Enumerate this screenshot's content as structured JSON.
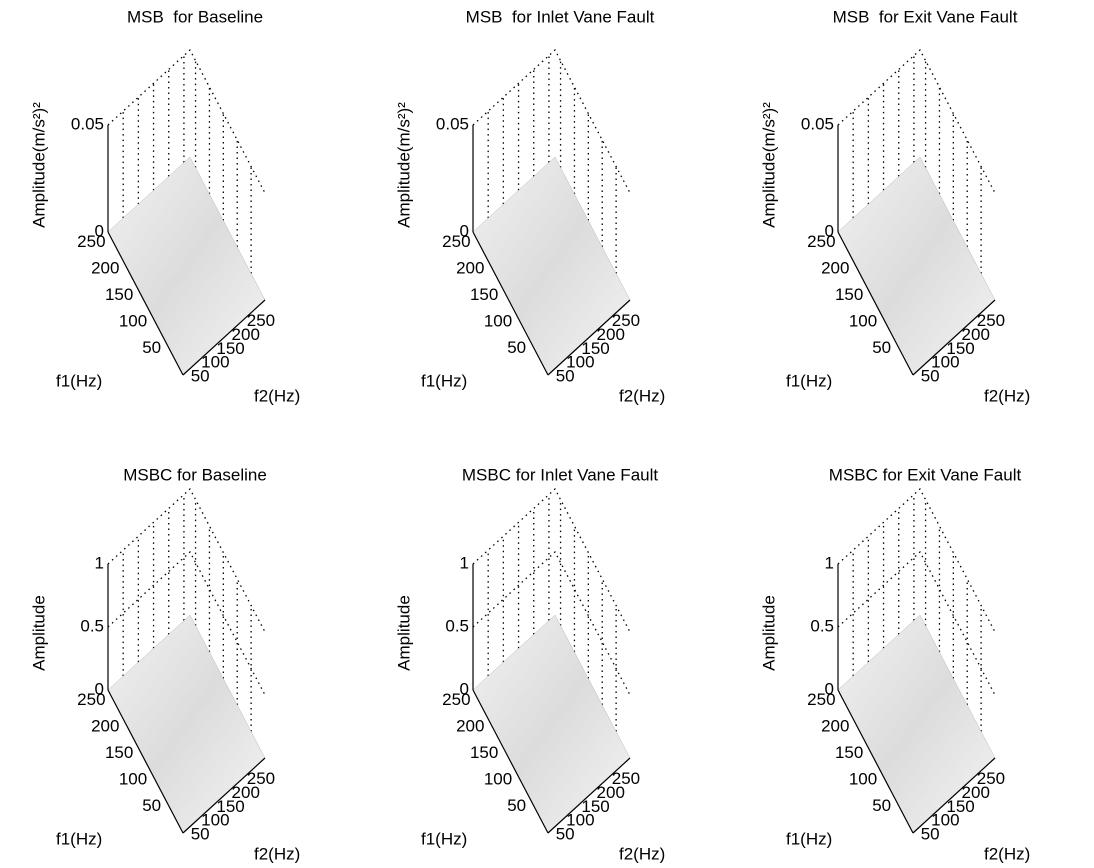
{
  "chart_data": [
    {
      "type": "surface",
      "title": "MSB  for Baseline",
      "zlabel": "Amplitude(m/s²)²",
      "xlabel": "f2(Hz)",
      "ylabel": "f1(Hz)",
      "xlim": [
        0,
        270
      ],
      "ylim": [
        0,
        270
      ],
      "zlim": [
        0,
        0.05
      ],
      "xticks": [
        50,
        100,
        150,
        200,
        250
      ],
      "yticks": [
        50,
        100,
        150,
        200,
        250
      ],
      "zticks": [
        0,
        0.05
      ],
      "grid": true
    },
    {
      "type": "surface",
      "title": "MSB  for Inlet Vane Fault",
      "zlabel": "Amplitude(m/s²)²",
      "xlabel": "f2(Hz)",
      "ylabel": "f1(Hz)",
      "xlim": [
        0,
        270
      ],
      "ylim": [
        0,
        270
      ],
      "zlim": [
        0,
        0.05
      ],
      "xticks": [
        50,
        100,
        150,
        200,
        250
      ],
      "yticks": [
        50,
        100,
        150,
        200,
        250
      ],
      "zticks": [
        0,
        0.05
      ],
      "grid": true
    },
    {
      "type": "surface",
      "title": "MSB  for Exit Vane Fault",
      "zlabel": "Amplitude(m/s²)²",
      "xlabel": "f2(Hz)",
      "ylabel": "f1(Hz)",
      "xlim": [
        0,
        270
      ],
      "ylim": [
        0,
        270
      ],
      "zlim": [
        0,
        0.05
      ],
      "xticks": [
        50,
        100,
        150,
        200,
        250
      ],
      "yticks": [
        50,
        100,
        150,
        200,
        250
      ],
      "zticks": [
        0,
        0.05
      ],
      "grid": true
    },
    {
      "type": "surface",
      "title": "MSBC for Baseline",
      "zlabel": "Amplitude",
      "xlabel": "f2(Hz)",
      "ylabel": "f1(Hz)",
      "xlim": [
        0,
        270
      ],
      "ylim": [
        0,
        270
      ],
      "zlim": [
        0,
        1
      ],
      "xticks": [
        50,
        100,
        150,
        200,
        250
      ],
      "yticks": [
        50,
        100,
        150,
        200,
        250
      ],
      "zticks": [
        0,
        0.5,
        1
      ],
      "grid": true
    },
    {
      "type": "surface",
      "title": "MSBC for Inlet Vane Fault",
      "zlabel": "Amplitude",
      "xlabel": "f2(Hz)",
      "ylabel": "f1(Hz)",
      "xlim": [
        0,
        270
      ],
      "ylim": [
        0,
        270
      ],
      "zlim": [
        0,
        1
      ],
      "xticks": [
        50,
        100,
        150,
        200,
        250
      ],
      "yticks": [
        50,
        100,
        150,
        200,
        250
      ],
      "zticks": [
        0,
        0.5,
        1
      ],
      "grid": true
    },
    {
      "type": "surface",
      "title": "MSBC for Exit Vane Fault",
      "zlabel": "Amplitude",
      "xlabel": "f2(Hz)",
      "ylabel": "f1(Hz)",
      "xlim": [
        0,
        270
      ],
      "ylim": [
        0,
        270
      ],
      "zlim": [
        0,
        1
      ],
      "xticks": [
        50,
        100,
        150,
        200,
        250
      ],
      "yticks": [
        50,
        100,
        150,
        200,
        250
      ],
      "zticks": [
        0,
        0.5,
        1
      ],
      "grid": true
    }
  ]
}
